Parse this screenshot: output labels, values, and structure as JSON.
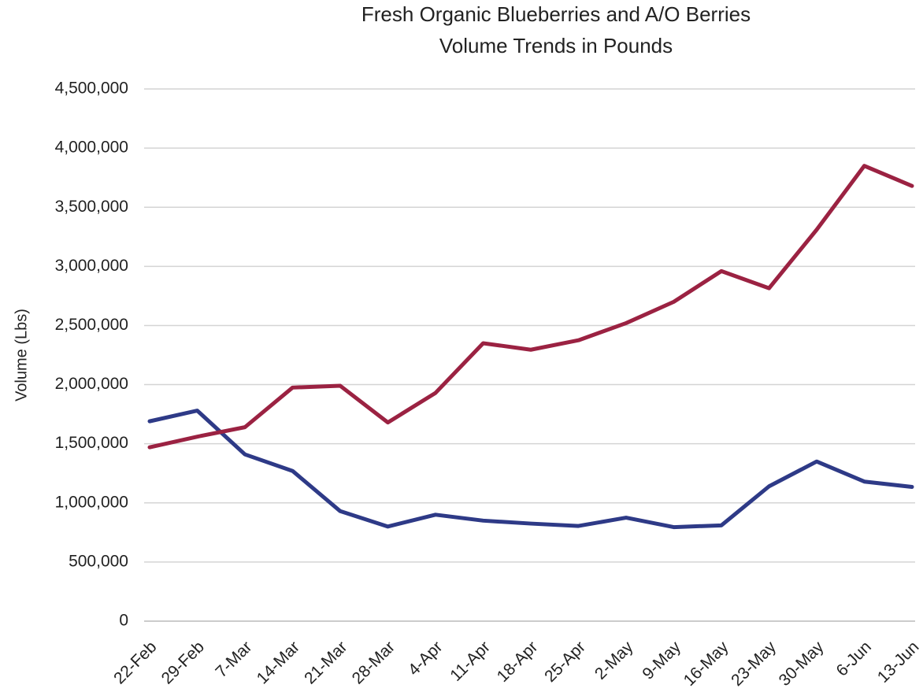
{
  "chart_data": {
    "type": "line",
    "title": "Fresh Organic Blueberries and A/O Berries",
    "subtitle": "Volume Trends in Pounds",
    "y_label": "Volume (Lbs)",
    "categories": [
      "22-Feb",
      "29-Feb",
      "7-Mar",
      "14-Mar",
      "21-Mar",
      "28-Mar",
      "4-Apr",
      "11-Apr",
      "18-Apr",
      "25-Apr",
      "2-May",
      "9-May",
      "16-May",
      "23-May",
      "30-May",
      "6-Jun",
      "13-Jun"
    ],
    "series": [
      {
        "color": "#2e3a87",
        "values": [
          1690000,
          1780000,
          1410000,
          1270000,
          930000,
          800000,
          900000,
          850000,
          825000,
          805000,
          875000,
          795000,
          810000,
          1140000,
          1350000,
          1180000,
          1135000
        ]
      },
      {
        "color": "#9b2242",
        "values": [
          1470000,
          1560000,
          1640000,
          1975000,
          1990000,
          1680000,
          1930000,
          2350000,
          2295000,
          2375000,
          2520000,
          2700000,
          2960000,
          2815000,
          3310000,
          3850000,
          3680000
        ]
      }
    ],
    "ylim": [
      0,
      4500000
    ],
    "yticks": [
      0,
      {
        "value": 500000,
        "label": "500,000"
      },
      {
        "value": 1000000,
        "label": "1,000,000"
      },
      {
        "value": 1500000,
        "label": "1,500,000"
      },
      {
        "value": 2000000,
        "label": "2,000,000"
      },
      {
        "value": 2500000,
        "label": "2,500,000"
      },
      {
        "value": 3000000,
        "label": "3,000,000"
      },
      {
        "value": 3500000,
        "label": "3,500,000"
      },
      {
        "value": 4000000,
        "label": "4,000,000"
      },
      {
        "value": 4500000,
        "label": "4,500,000"
      }
    ],
    "grid": true
  }
}
